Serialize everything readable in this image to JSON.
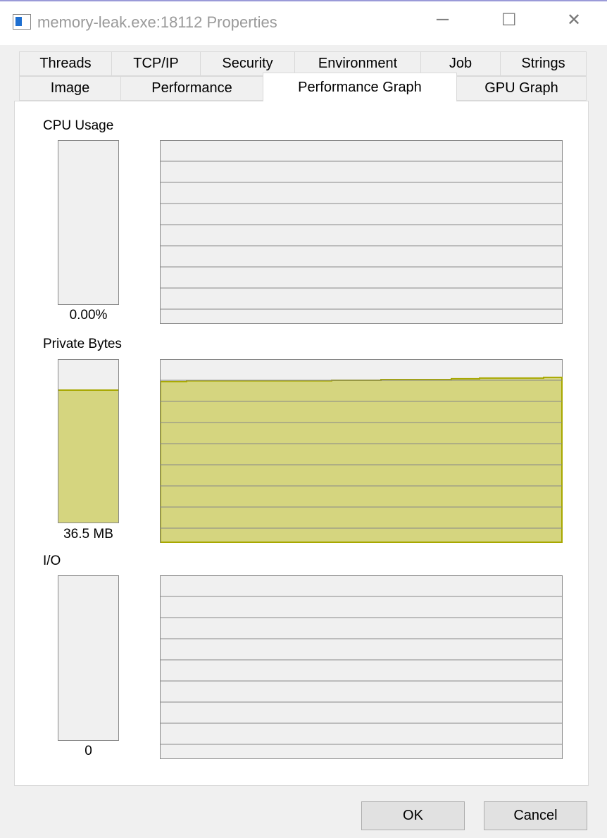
{
  "window": {
    "title": "memory-leak.exe:18112 Properties",
    "minimize": "─",
    "maximize": "☐",
    "close": "✕"
  },
  "tabs_row1": [
    "Threads",
    "TCP/IP",
    "Security",
    "Environment",
    "Job",
    "Strings"
  ],
  "tabs_row2": [
    "Image",
    "Performance",
    "Performance Graph",
    "GPU Graph"
  ],
  "selected_tab": "Performance Graph",
  "sections": {
    "cpu": {
      "label": "CPU Usage",
      "value": "0.00%",
      "level": 0
    },
    "private_bytes": {
      "label": "Private Bytes",
      "value": "36.5 MB",
      "level": 0.81
    },
    "io": {
      "label": "I/O",
      "value": "0",
      "level": 0
    }
  },
  "colors": {
    "private_bytes_fill": "#d5d57f",
    "private_bytes_line": "#a8a800",
    "grid": "#888888"
  },
  "chart_data": {
    "type": "area",
    "series": [
      {
        "values": [
          0.881,
          0.885,
          0.885,
          0.888,
          0.892,
          0.896,
          0.9,
          0.904,
          0.904,
          0.804
        ]
      }
    ],
    "ylim": [
      0,
      1
    ],
    "grid": true
  },
  "buttons": {
    "ok": "OK",
    "cancel": "Cancel"
  }
}
